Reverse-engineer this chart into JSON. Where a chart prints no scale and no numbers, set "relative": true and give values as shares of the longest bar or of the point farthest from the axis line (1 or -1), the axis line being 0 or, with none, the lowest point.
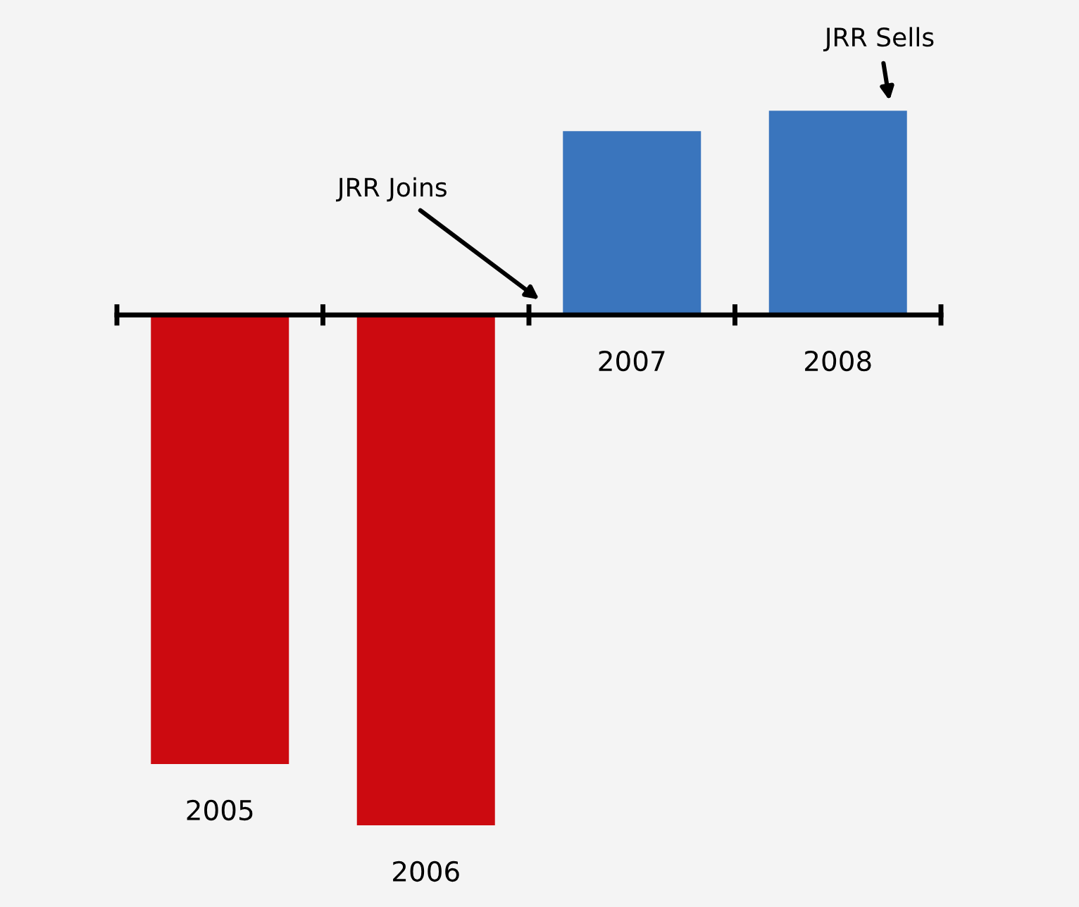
{
  "chart_data": {
    "type": "bar",
    "relative": true,
    "categories": [
      "2005",
      "2006",
      "2007",
      "2008"
    ],
    "values": [
      -0.88,
      -1,
      0.36,
      0.4
    ],
    "colors": [
      "#cc0a10",
      "#cc0a10",
      "#3a75bd",
      "#3a75bd"
    ],
    "annotations": [
      "JRR Joins",
      "JRR Sells"
    ]
  }
}
